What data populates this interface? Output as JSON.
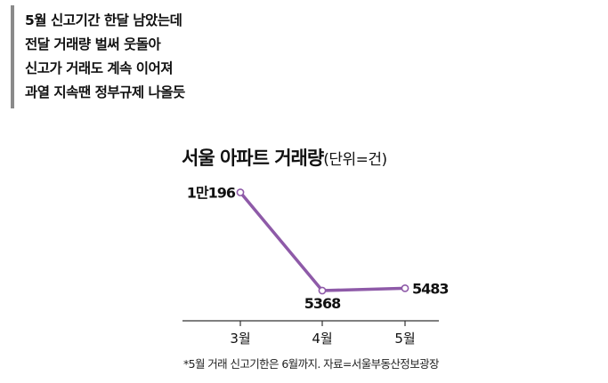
{
  "summary": {
    "lines": [
      "5월 신고기간 한달 남았는데",
      "전달 거래량 벌써 웃돌아",
      "신고가 거래도 계속 이어져",
      "과열 지속땐 정부규제 나올듯"
    ]
  },
  "chart_data": {
    "type": "line",
    "title": "서울 아파트 거래량",
    "unit_label": "(단위=건)",
    "categories": [
      "3월",
      "4월",
      "5월"
    ],
    "values": [
      10196,
      5368,
      5483
    ],
    "data_labels": [
      "1만196",
      "5368",
      "5483"
    ],
    "ylim": [
      4800,
      10700
    ],
    "grid": false,
    "line_color": "#8e5aa8"
  },
  "footnote": "*5월 거래 신고기한은 6월까지. 자료=서울부동산정보광장"
}
